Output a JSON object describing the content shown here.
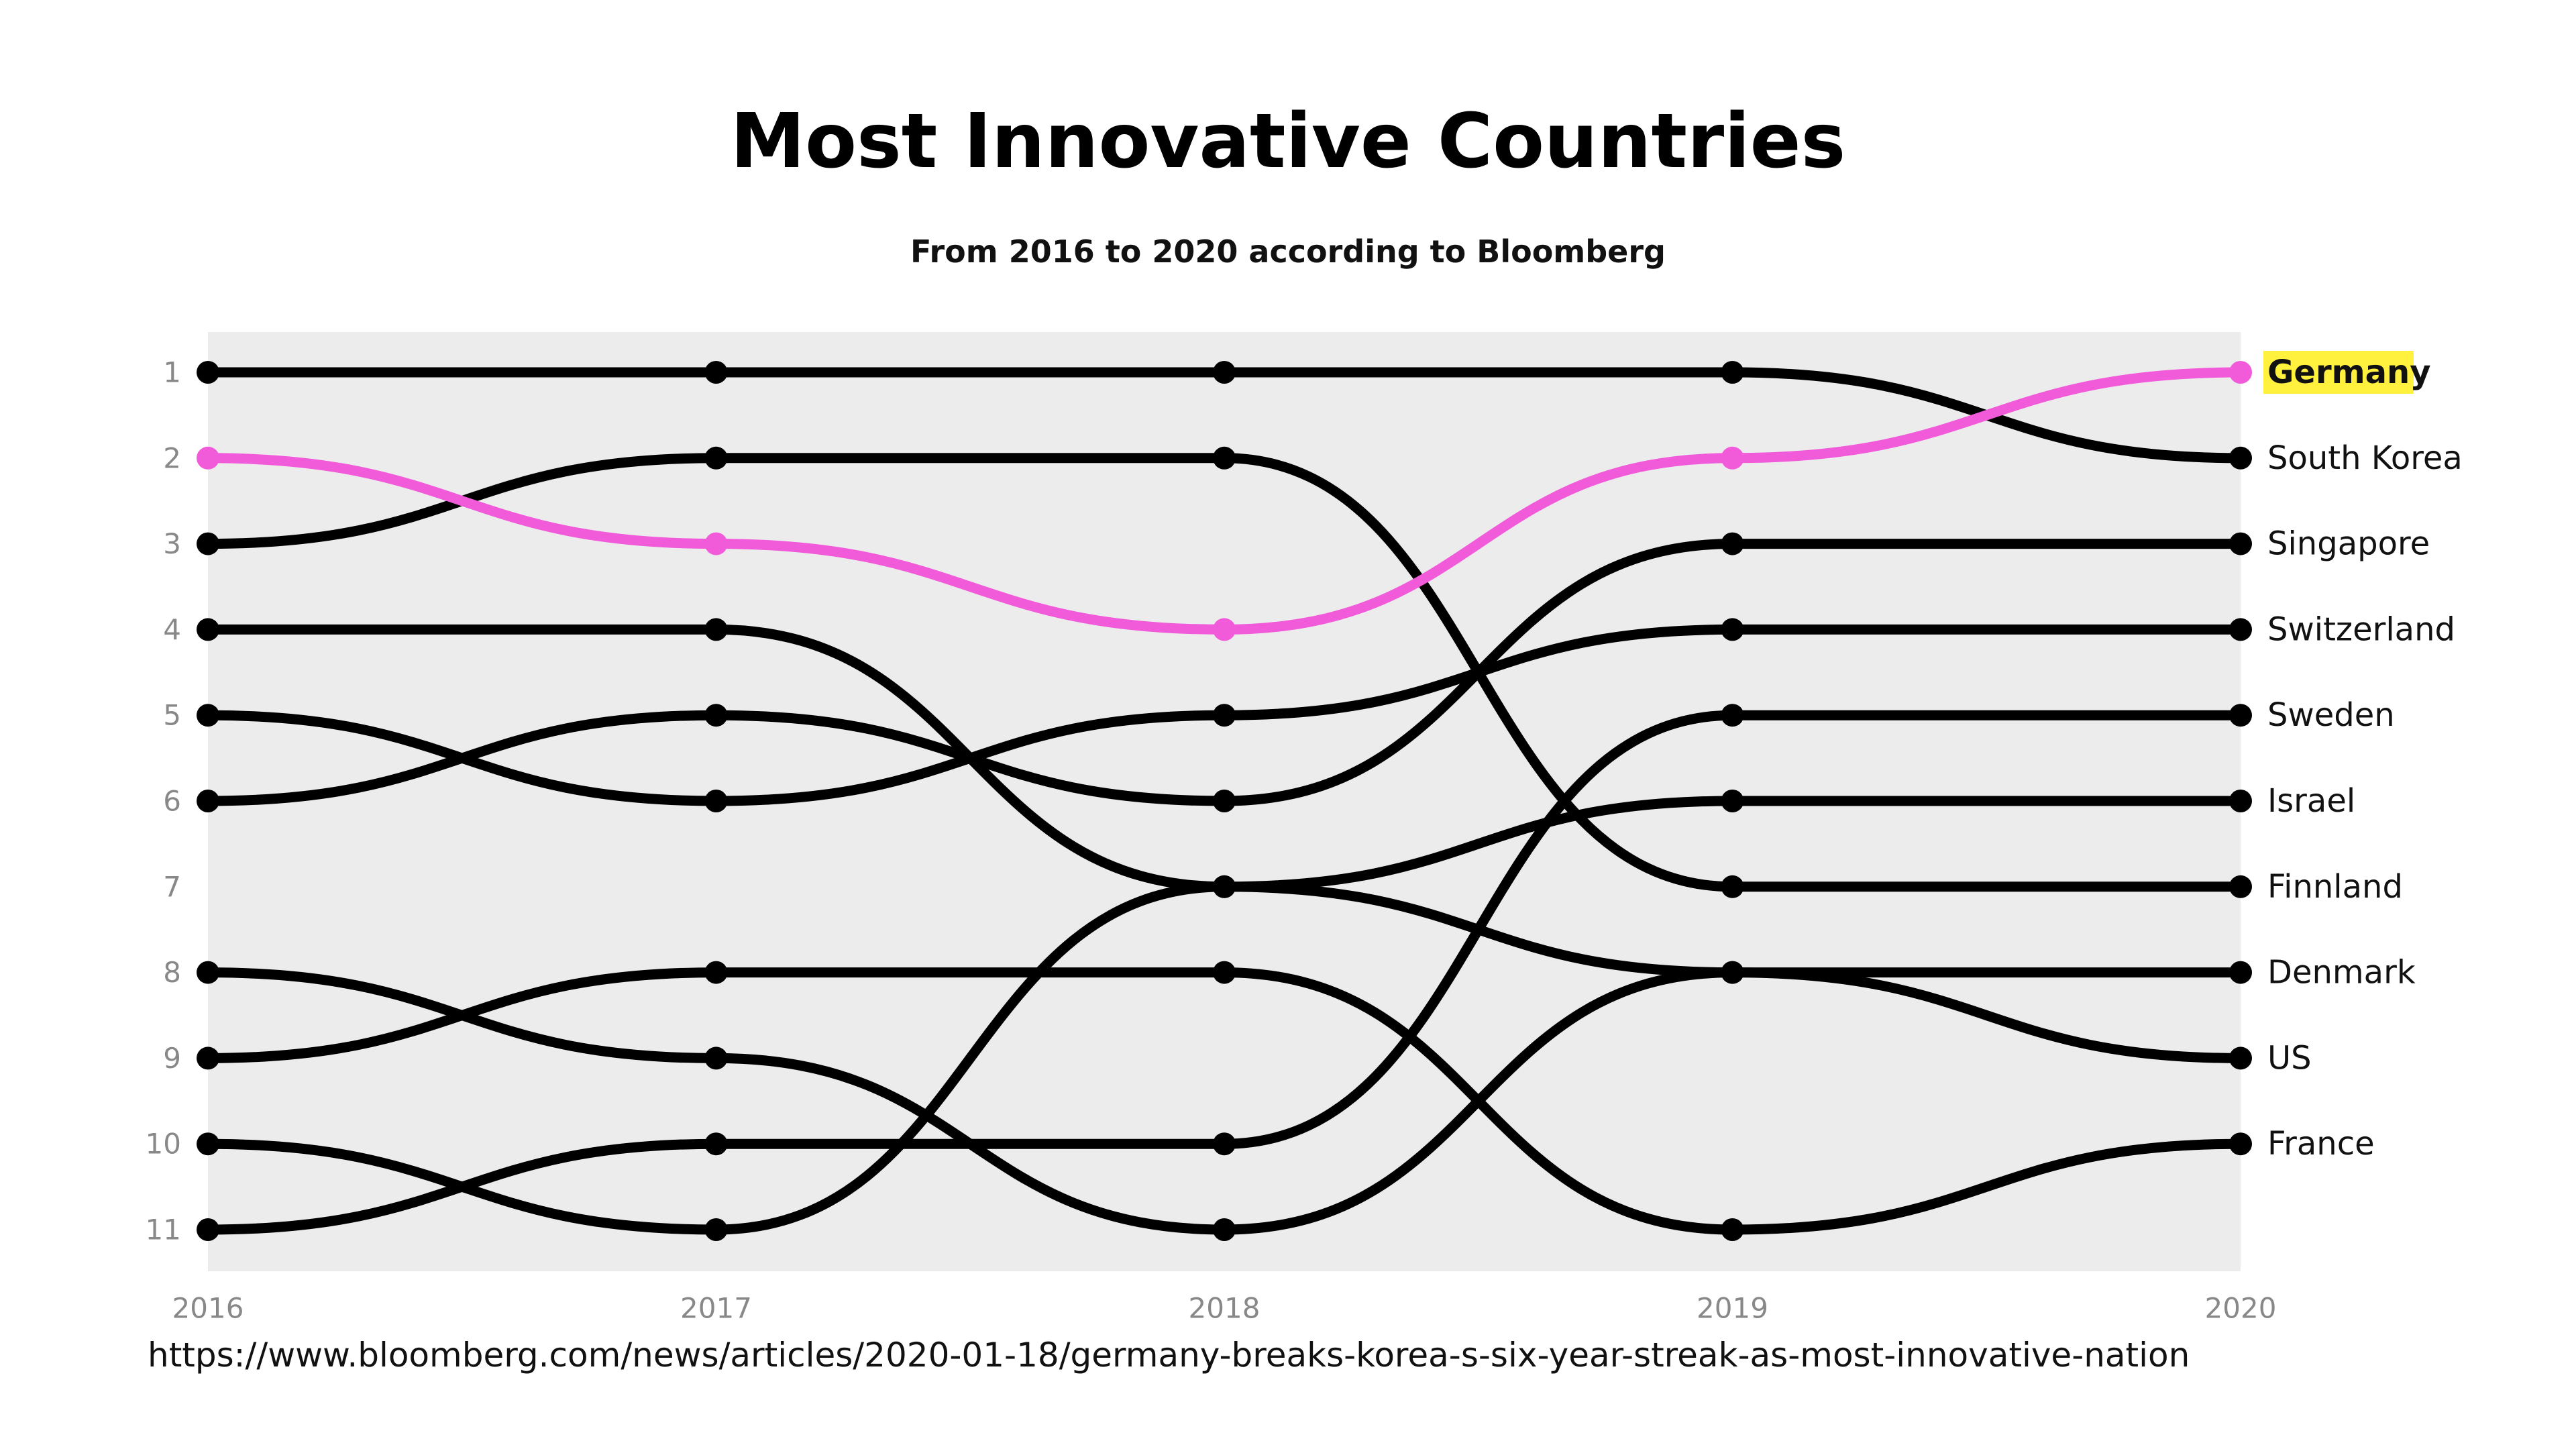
{
  "chart_data": {
    "type": "line",
    "subtype": "bump",
    "title": "Most Innovative Countries",
    "subtitle": "From 2016 to 2020 according to Bloomberg",
    "source": "https://www.bloomberg.com/news/articles/2020-01-18/germany-breaks-korea-s-six-year-streak-as-most-innovative-nation",
    "x": [
      2016,
      2017,
      2018,
      2019,
      2020
    ],
    "y_ticks": [
      1,
      2,
      3,
      4,
      5,
      6,
      7,
      8,
      9,
      10,
      11
    ],
    "ylim": [
      1,
      11
    ],
    "y_inverted": true,
    "highlight_series": "Germany",
    "colors": {
      "default": "#000000",
      "highlight": "#f15bd9",
      "label_highlight_bg": "#fff13d",
      "plot_bg": "#ececec"
    },
    "series": [
      {
        "name": "Germany",
        "values": [
          2,
          3,
          4,
          2,
          1
        ]
      },
      {
        "name": "South Korea",
        "values": [
          1,
          1,
          1,
          1,
          2
        ]
      },
      {
        "name": "Singapore",
        "values": [
          6,
          5,
          6,
          3,
          3
        ]
      },
      {
        "name": "Switzerland",
        "values": [
          5,
          6,
          5,
          4,
          4
        ]
      },
      {
        "name": "Sweden",
        "values": [
          11,
          10,
          10,
          5,
          5
        ]
      },
      {
        "name": "Israel",
        "values": [
          10,
          11,
          7,
          6,
          6
        ]
      },
      {
        "name": "Finnland",
        "values": [
          3,
          2,
          2,
          7,
          7
        ]
      },
      {
        "name": "Denmark",
        "values": [
          8,
          9,
          11,
          8,
          8
        ]
      },
      {
        "name": "US",
        "values": [
          4,
          4,
          7,
          8,
          9
        ]
      },
      {
        "name": "France",
        "values": [
          9,
          8,
          8,
          11,
          10
        ]
      }
    ]
  }
}
